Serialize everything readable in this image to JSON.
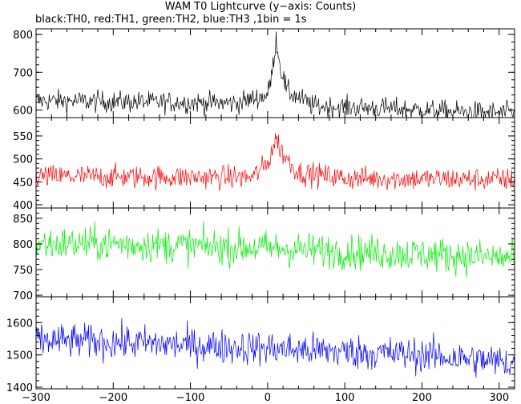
{
  "title": "WAM T0 Lightcurve (y−axis: Counts)",
  "subtitle": "black:TH0, red:TH1, green:TH2, blue:TH3 ,1bin = 1s",
  "chart_data": [
    {
      "type": "line",
      "name": "TH0",
      "color": "#000000",
      "x_range": [
        -300,
        320
      ],
      "ylim": [
        580,
        815
      ],
      "yticks": [
        600,
        700,
        800
      ],
      "xticks": [
        -300,
        -200,
        -100,
        0,
        100,
        200,
        300
      ],
      "xtick_labels": [],
      "profile": [
        {
          "x": -300,
          "y": 625
        },
        {
          "x": -200,
          "y": 622
        },
        {
          "x": -100,
          "y": 620
        },
        {
          "x": -40,
          "y": 618
        },
        {
          "x": 0,
          "y": 640
        },
        {
          "x": 6,
          "y": 700
        },
        {
          "x": 11,
          "y": 790
        },
        {
          "x": 16,
          "y": 720
        },
        {
          "x": 25,
          "y": 650
        },
        {
          "x": 60,
          "y": 610
        },
        {
          "x": 150,
          "y": 605
        },
        {
          "x": 250,
          "y": 595
        },
        {
          "x": 320,
          "y": 592
        }
      ],
      "noise": 20
    },
    {
      "type": "line",
      "name": "TH1",
      "color": "#ff0000",
      "x_range": [
        -300,
        320
      ],
      "ylim": [
        393,
        590
      ],
      "yticks": [
        400,
        450,
        500,
        550
      ],
      "xticks": [
        -300,
        -200,
        -100,
        0,
        100,
        200,
        300
      ],
      "xtick_labels": [],
      "profile": [
        {
          "x": -300,
          "y": 462
        },
        {
          "x": -100,
          "y": 460
        },
        {
          "x": -20,
          "y": 460
        },
        {
          "x": 0,
          "y": 490
        },
        {
          "x": 11,
          "y": 545
        },
        {
          "x": 20,
          "y": 510
        },
        {
          "x": 40,
          "y": 470
        },
        {
          "x": 100,
          "y": 458
        },
        {
          "x": 320,
          "y": 455
        }
      ],
      "noise": 18
    },
    {
      "type": "line",
      "name": "TH2",
      "color": "#00ee00",
      "x_range": [
        -300,
        320
      ],
      "ylim": [
        697,
        870
      ],
      "yticks": [
        700,
        750,
        800,
        850
      ],
      "xticks": [
        -300,
        -200,
        -100,
        0,
        100,
        200,
        300
      ],
      "xtick_labels": [],
      "profile": [
        {
          "x": -300,
          "y": 800
        },
        {
          "x": -200,
          "y": 800
        },
        {
          "x": 0,
          "y": 792
        },
        {
          "x": 100,
          "y": 785
        },
        {
          "x": 200,
          "y": 780
        },
        {
          "x": 320,
          "y": 772
        }
      ],
      "noise": 24
    },
    {
      "type": "line",
      "name": "TH3",
      "color": "#0000ff",
      "x_range": [
        -300,
        320
      ],
      "ylim": [
        1395,
        1680
      ],
      "yticks": [
        1400,
        1500,
        1600
      ],
      "xticks": [
        -300,
        -200,
        -100,
        0,
        100,
        200,
        300
      ],
      "xtick_labels": [
        "−300",
        "−200",
        "−100",
        "0",
        "100",
        "200",
        "300"
      ],
      "profile": [
        {
          "x": -300,
          "y": 1545
        },
        {
          "x": -200,
          "y": 1540
        },
        {
          "x": -100,
          "y": 1530
        },
        {
          "x": 0,
          "y": 1520
        },
        {
          "x": 100,
          "y": 1510
        },
        {
          "x": 200,
          "y": 1500
        },
        {
          "x": 320,
          "y": 1475
        }
      ],
      "noise": 38
    }
  ]
}
